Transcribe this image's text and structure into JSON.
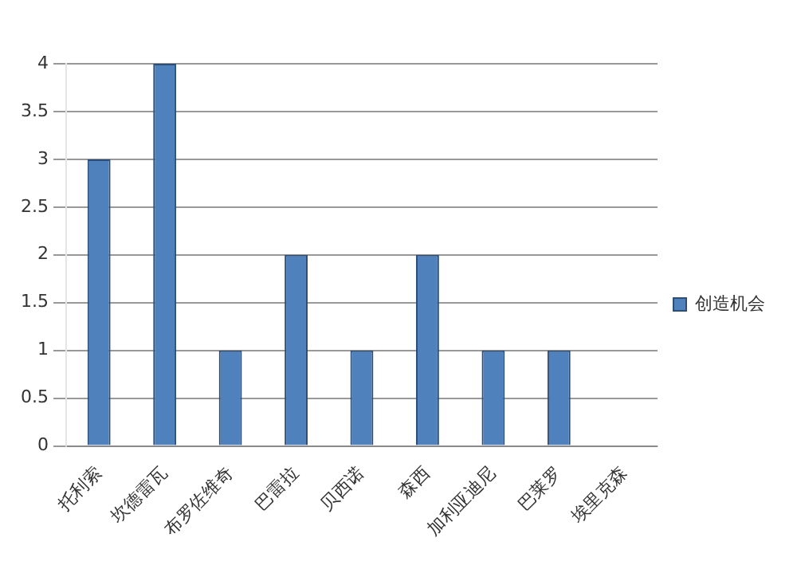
{
  "chart_data": {
    "type": "bar",
    "categories": [
      "托利索",
      "坎德雷瓦",
      "布罗佐维奇",
      "巴雷拉",
      "贝西诺",
      "森西",
      "加利亚迪尼",
      "巴莱罗",
      "埃里克森"
    ],
    "series": [
      {
        "name": "创造机会",
        "color": "#4f81bd",
        "values": [
          3,
          4,
          1,
          2,
          1,
          2,
          1,
          1,
          0
        ]
      }
    ],
    "ylim": [
      0,
      4
    ],
    "yticks": [
      0,
      0.5,
      1,
      1.5,
      2,
      2.5,
      3,
      3.5,
      4
    ],
    "grid": "y",
    "legend": "right"
  }
}
